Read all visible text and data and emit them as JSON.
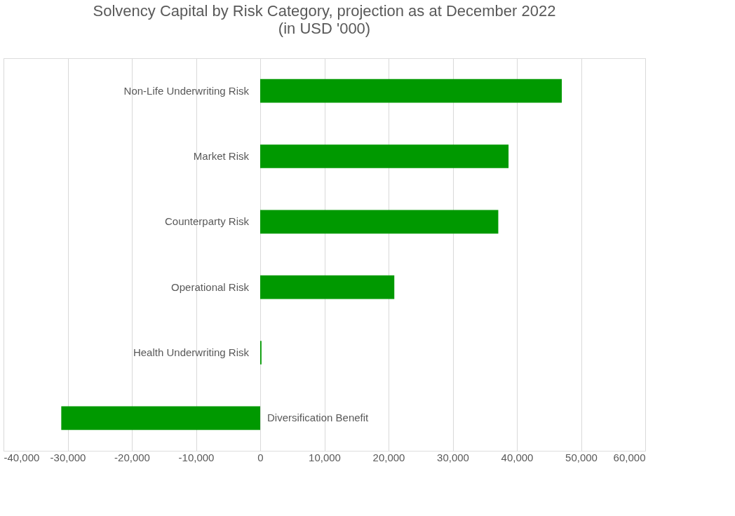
{
  "chart_data": {
    "type": "bar",
    "orientation": "horizontal",
    "title": "Solvency Capital by Risk Category, projection as at December 2022",
    "subtitle": "(in USD '000)",
    "categories": [
      "Non-Life Underwriting Risk",
      "Market Risk",
      "Counterparty Risk",
      "Operational Risk",
      "Health Underwriting Risk",
      "Diversification Benefit"
    ],
    "values": [
      47000,
      38700,
      37100,
      20900,
      200,
      -31000
    ],
    "color": "#009900",
    "xlim": [
      -40000,
      60000
    ],
    "xticks": [
      {
        "value": -40000,
        "label": "-40,000"
      },
      {
        "value": -30000,
        "label": "-30,000"
      },
      {
        "value": -20000,
        "label": "-20,000"
      },
      {
        "value": -10000,
        "label": "-10,000"
      },
      0,
      {
        "value": 10000,
        "label": "10,000"
      },
      {
        "value": 20000,
        "label": "20,000"
      },
      {
        "value": 30000,
        "label": "30,000"
      },
      {
        "value": 40000,
        "label": "40,000"
      },
      {
        "value": 50000,
        "label": "50,000"
      },
      {
        "value": 60000,
        "label": "60,000"
      }
    ],
    "grid": "x"
  }
}
